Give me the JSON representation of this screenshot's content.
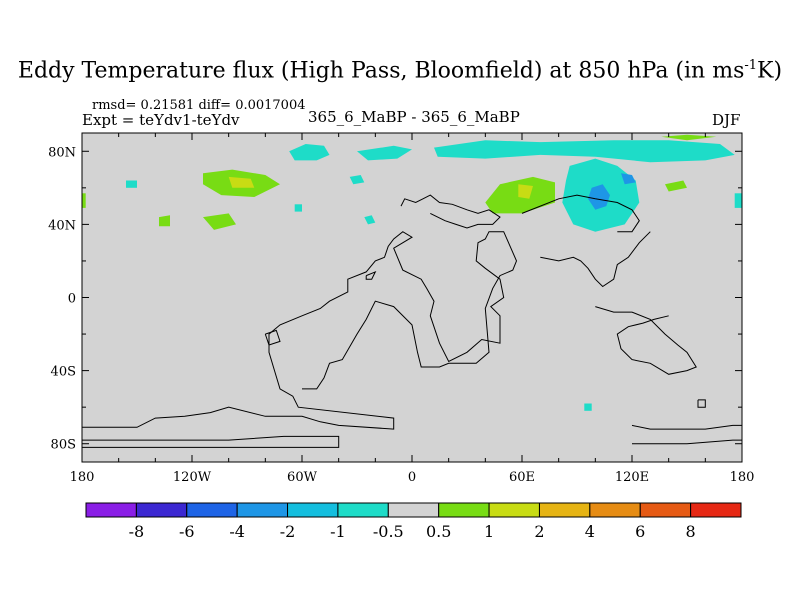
{
  "chart_data": {
    "type": "heatmap",
    "title": "Eddy Temperature flux (High Pass, Bloomfield) at 850 hPa (in ms",
    "title_sup": "-1",
    "title_end": "K)",
    "stats": "rmsd= 0.21581 diff= 0.0017004",
    "experiment": "Expt = teYdv1-teYdv",
    "center_label": "365_6_MaBP - 365_6_MaBP",
    "season": "DJF",
    "x_ticks": [
      {
        "value": -180,
        "label": "180"
      },
      {
        "value": -120,
        "label": "120W"
      },
      {
        "value": -60,
        "label": "60W"
      },
      {
        "value": 0,
        "label": "0"
      },
      {
        "value": 60,
        "label": "60E"
      },
      {
        "value": 120,
        "label": "120E"
      },
      {
        "value": 180,
        "label": "180"
      }
    ],
    "y_ticks": [
      {
        "value": 80,
        "label": "80N"
      },
      {
        "value": 40,
        "label": "40N"
      },
      {
        "value": 0,
        "label": "0"
      },
      {
        "value": -40,
        "label": "40S"
      },
      {
        "value": -80,
        "label": "80S"
      }
    ],
    "xlim": [
      -180,
      180
    ],
    "ylim": [
      -90,
      90
    ],
    "background_color": "#d3d3d3",
    "colorbar": {
      "colors": [
        "#8a1ee6",
        "#3c28d2",
        "#1e64e6",
        "#1e96e6",
        "#14bede",
        "#1edcc8",
        "#d3d3d3",
        "#78dc14",
        "#c8dc14",
        "#e6b414",
        "#e68c14",
        "#e65a14",
        "#e62814"
      ],
      "labels": [
        "-8",
        "-6",
        "-4",
        "-2",
        "-1",
        "-0.5",
        "0.5",
        "1",
        "2",
        "4",
        "6",
        "8"
      ]
    },
    "regions": [
      {
        "level": "-1",
        "color": "#1edcc8",
        "points": [
          [
            -67,
            80
          ],
          [
            -58,
            84
          ],
          [
            -48,
            83
          ],
          [
            -45,
            78
          ],
          [
            -52,
            75
          ],
          [
            -64,
            75
          ]
        ]
      },
      {
        "level": "-1",
        "color": "#1edcc8",
        "points": [
          [
            -30,
            80
          ],
          [
            -10,
            83
          ],
          [
            0,
            81
          ],
          [
            -8,
            76
          ],
          [
            -24,
            75
          ]
        ]
      },
      {
        "level": "-1",
        "color": "#1edcc8",
        "points": [
          [
            12,
            82
          ],
          [
            40,
            86
          ],
          [
            70,
            85
          ],
          [
            110,
            86
          ],
          [
            140,
            86
          ],
          [
            168,
            84
          ],
          [
            176,
            78
          ],
          [
            160,
            75
          ],
          [
            130,
            74
          ],
          [
            100,
            77
          ],
          [
            70,
            78
          ],
          [
            40,
            76
          ],
          [
            14,
            77
          ]
        ]
      },
      {
        "level": "-1",
        "color": "#1edcc8",
        "points": [
          [
            86,
            72
          ],
          [
            100,
            76
          ],
          [
            112,
            72
          ],
          [
            122,
            64
          ],
          [
            124,
            52
          ],
          [
            116,
            40
          ],
          [
            100,
            36
          ],
          [
            88,
            40
          ],
          [
            82,
            52
          ],
          [
            84,
            64
          ]
        ]
      },
      {
        "level": "-2",
        "color": "#1e96e6",
        "points": [
          [
            98,
            60
          ],
          [
            104,
            62
          ],
          [
            108,
            56
          ],
          [
            106,
            50
          ],
          [
            100,
            48
          ],
          [
            96,
            54
          ]
        ]
      },
      {
        "level": "-2",
        "color": "#1e96e6",
        "points": [
          [
            114,
            68
          ],
          [
            120,
            67
          ],
          [
            122,
            63
          ],
          [
            116,
            62
          ]
        ]
      },
      {
        "level": "-1",
        "color": "#1edcc8",
        "points": [
          [
            -156,
            64
          ],
          [
            -150,
            64
          ],
          [
            -150,
            60
          ],
          [
            -156,
            60
          ]
        ]
      },
      {
        "level": "-1",
        "color": "#1edcc8",
        "points": [
          [
            -34,
            66
          ],
          [
            -28,
            67
          ],
          [
            -26,
            63
          ],
          [
            -32,
            62
          ]
        ]
      },
      {
        "level": "-1",
        "color": "#1edcc8",
        "points": [
          [
            -64,
            51
          ],
          [
            -60,
            51
          ],
          [
            -60,
            47
          ],
          [
            -64,
            47
          ]
        ]
      },
      {
        "level": "-1",
        "color": "#1edcc8",
        "points": [
          [
            -26,
            44
          ],
          [
            -22,
            45
          ],
          [
            -20,
            41
          ],
          [
            -24,
            40
          ]
        ]
      },
      {
        "level": "-1",
        "color": "#1edcc8",
        "points": [
          [
            94,
            -58
          ],
          [
            98,
            -58
          ],
          [
            98,
            -62
          ],
          [
            94,
            -62
          ]
        ]
      },
      {
        "level": "-1",
        "color": "#1edcc8",
        "points": [
          [
            176,
            57
          ],
          [
            180,
            57
          ],
          [
            180,
            49
          ],
          [
            176,
            49
          ]
        ]
      },
      {
        "level": "1",
        "color": "#78dc14",
        "points": [
          [
            -114,
            68
          ],
          [
            -98,
            70
          ],
          [
            -80,
            67
          ],
          [
            -72,
            62
          ],
          [
            -86,
            55
          ],
          [
            -104,
            56
          ],
          [
            -114,
            62
          ]
        ]
      },
      {
        "level": "2",
        "color": "#c8dc14",
        "points": [
          [
            -100,
            66
          ],
          [
            -88,
            65
          ],
          [
            -86,
            60
          ],
          [
            -98,
            60
          ]
        ]
      },
      {
        "level": "1",
        "color": "#78dc14",
        "points": [
          [
            -114,
            44
          ],
          [
            -100,
            46
          ],
          [
            -96,
            40
          ],
          [
            -108,
            37
          ]
        ]
      },
      {
        "level": "1",
        "color": "#78dc14",
        "points": [
          [
            -138,
            44
          ],
          [
            -132,
            45
          ],
          [
            -132,
            39
          ],
          [
            -138,
            39
          ]
        ]
      },
      {
        "level": "1",
        "color": "#78dc14",
        "points": [
          [
            48,
            62
          ],
          [
            66,
            66
          ],
          [
            78,
            63
          ],
          [
            78,
            52
          ],
          [
            60,
            46
          ],
          [
            44,
            46
          ],
          [
            40,
            52
          ]
        ]
      },
      {
        "level": "2",
        "color": "#c8dc14",
        "points": [
          [
            58,
            62
          ],
          [
            66,
            61
          ],
          [
            64,
            54
          ],
          [
            58,
            55
          ]
        ]
      },
      {
        "level": "1",
        "color": "#78dc14",
        "points": [
          [
            138,
            62
          ],
          [
            148,
            64
          ],
          [
            150,
            60
          ],
          [
            140,
            58
          ]
        ]
      },
      {
        "level": "1",
        "color": "#78dc14",
        "points": [
          [
            136,
            88
          ],
          [
            150,
            89
          ],
          [
            166,
            88
          ],
          [
            150,
            86
          ]
        ]
      },
      {
        "level": "1",
        "color": "#78dc14",
        "points": [
          [
            -180,
            57
          ],
          [
            -178,
            57
          ],
          [
            -178,
            49
          ],
          [
            -180,
            49
          ]
        ]
      }
    ],
    "coastlines": [
      [
        [
          -180,
          -71
        ],
        [
          -150,
          -71
        ],
        [
          -140,
          -66
        ],
        [
          -124,
          -65
        ],
        [
          -110,
          -63
        ],
        [
          -100,
          -60
        ],
        [
          -80,
          -65
        ],
        [
          -70,
          -65
        ],
        [
          -60,
          -65
        ],
        [
          -50,
          -68
        ],
        [
          -40,
          -70
        ],
        [
          -10,
          -72
        ],
        [
          -10,
          -66
        ],
        [
          -62,
          -60
        ],
        [
          -65,
          -54
        ],
        [
          -72,
          -50
        ],
        [
          -75,
          -40
        ],
        [
          -78,
          -30
        ],
        [
          -78,
          -20
        ],
        [
          -72,
          -15
        ],
        [
          -60,
          -10
        ],
        [
          -50,
          -6
        ],
        [
          -45,
          -2
        ],
        [
          -35,
          3
        ],
        [
          -35,
          10
        ],
        [
          -25,
          14
        ],
        [
          -20,
          20
        ],
        [
          -15,
          22
        ],
        [
          -13,
          28
        ],
        [
          -10,
          32
        ],
        [
          -5,
          36
        ],
        [
          0,
          33
        ],
        [
          -10,
          27
        ],
        [
          -5,
          15
        ],
        [
          5,
          10
        ],
        [
          8,
          5
        ],
        [
          12,
          -2
        ],
        [
          10,
          -10
        ],
        [
          15,
          -25
        ],
        [
          20,
          -35
        ],
        [
          30,
          -30
        ],
        [
          38,
          -23
        ],
        [
          48,
          -25
        ],
        [
          48,
          -10
        ],
        [
          43,
          -5
        ],
        [
          50,
          0
        ],
        [
          48,
          10
        ],
        [
          40,
          16
        ],
        [
          35,
          20
        ],
        [
          36,
          30
        ],
        [
          40,
          32
        ],
        [
          42,
          36
        ],
        [
          50,
          36
        ],
        [
          57,
          20
        ],
        [
          55,
          15
        ],
        [
          48,
          12
        ],
        [
          44,
          5
        ],
        [
          40,
          -6
        ],
        [
          42,
          -30
        ],
        [
          35,
          -36
        ],
        [
          20,
          -36
        ],
        [
          15,
          -38
        ],
        [
          5,
          -38
        ],
        [
          3,
          -30
        ],
        [
          0,
          -15
        ],
        [
          -10,
          -5
        ],
        [
          -20,
          -2
        ],
        [
          -25,
          -12
        ],
        [
          -30,
          -20
        ],
        [
          -38,
          -34
        ],
        [
          -45,
          -36
        ],
        [
          -48,
          -44
        ],
        [
          -52,
          -50
        ],
        [
          -60,
          -50
        ]
      ],
      [
        [
          -180,
          -78
        ],
        [
          -100,
          -78
        ],
        [
          -70,
          -76
        ],
        [
          -40,
          -76
        ],
        [
          -40,
          -82
        ],
        [
          -180,
          -82
        ]
      ],
      [
        [
          -6,
          50
        ],
        [
          -4,
          54
        ],
        [
          2,
          52
        ],
        [
          6,
          54
        ],
        [
          10,
          56
        ],
        [
          15,
          52
        ],
        [
          22,
          51
        ],
        [
          30,
          48
        ],
        [
          36,
          46
        ],
        [
          42,
          48
        ],
        [
          48,
          44
        ],
        [
          44,
          40
        ],
        [
          36,
          40
        ],
        [
          30,
          38
        ],
        [
          24,
          40
        ],
        [
          18,
          42
        ],
        [
          10,
          46
        ]
      ],
      [
        [
          60,
          46
        ],
        [
          70,
          50
        ],
        [
          80,
          54
        ],
        [
          90,
          56
        ],
        [
          100,
          54
        ],
        [
          112,
          52
        ],
        [
          120,
          48
        ],
        [
          124,
          42
        ],
        [
          120,
          36
        ],
        [
          112,
          36
        ]
      ],
      [
        [
          70,
          22
        ],
        [
          80,
          20
        ],
        [
          88,
          22
        ],
        [
          92,
          20
        ],
        [
          96,
          16
        ],
        [
          100,
          10
        ],
        [
          104,
          6
        ],
        [
          110,
          10
        ],
        [
          112,
          18
        ],
        [
          118,
          22
        ],
        [
          124,
          30
        ],
        [
          130,
          36
        ]
      ],
      [
        [
          100,
          -5
        ],
        [
          110,
          -8
        ],
        [
          120,
          -8
        ],
        [
          130,
          -12
        ],
        [
          138,
          -20
        ],
        [
          145,
          -26
        ],
        [
          150,
          -30
        ],
        [
          155,
          -38
        ],
        [
          150,
          -40
        ],
        [
          140,
          -42
        ],
        [
          130,
          -36
        ],
        [
          120,
          -34
        ],
        [
          114,
          -28
        ],
        [
          112,
          -20
        ],
        [
          118,
          -16
        ],
        [
          126,
          -14
        ],
        [
          132,
          -12
        ],
        [
          140,
          -10
        ]
      ],
      [
        [
          120,
          -70
        ],
        [
          130,
          -72
        ],
        [
          145,
          -72
        ],
        [
          160,
          -72
        ],
        [
          175,
          -70
        ],
        [
          180,
          -70
        ]
      ],
      [
        [
          120,
          -80
        ],
        [
          150,
          -80
        ],
        [
          175,
          -78
        ],
        [
          180,
          -78
        ]
      ],
      [
        [
          156,
          -56
        ],
        [
          160,
          -56
        ],
        [
          160,
          -60
        ],
        [
          156,
          -60
        ],
        [
          156,
          -56
        ]
      ],
      [
        [
          -25,
          12
        ],
        [
          -20,
          14
        ],
        [
          -22,
          10
        ],
        [
          -25,
          10
        ],
        [
          -25,
          12
        ]
      ],
      [
        [
          -80,
          -20
        ],
        [
          -74,
          -18
        ],
        [
          -72,
          -24
        ],
        [
          -78,
          -26
        ],
        [
          -80,
          -20
        ]
      ]
    ]
  }
}
